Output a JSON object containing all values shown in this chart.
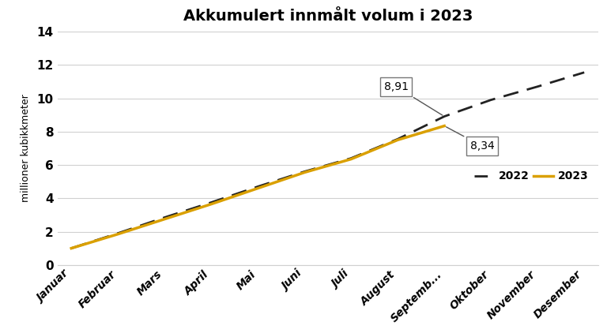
{
  "title": "Akkumulert innmålt volum i 2023",
  "ylabel": "millioner kubikkmeter",
  "months": [
    "Januar",
    "Februar",
    "Mars",
    "April",
    "Mai",
    "Juni",
    "Juli",
    "August",
    "Septemb...",
    "Oktober",
    "November",
    "Desember"
  ],
  "data_2022": [
    1.0,
    1.9,
    2.85,
    3.75,
    4.7,
    5.6,
    6.4,
    7.55,
    8.91,
    9.9,
    10.7,
    11.55
  ],
  "data_2023": [
    1.0,
    1.85,
    2.75,
    3.65,
    4.6,
    5.55,
    6.35,
    7.5,
    8.34
  ],
  "color_2022": "#222222",
  "color_2023": "#DAA000",
  "ylim": [
    0,
    14
  ],
  "yticks": [
    0,
    2,
    4,
    6,
    8,
    10,
    12,
    14
  ],
  "annotation_2022_value": "8,91",
  "annotation_2023_value": "8,34",
  "annotation_idx": 8,
  "grid_color": "#d0d0d0",
  "title_fontsize": 14,
  "tick_fontsize": 10,
  "ylabel_fontsize": 9
}
